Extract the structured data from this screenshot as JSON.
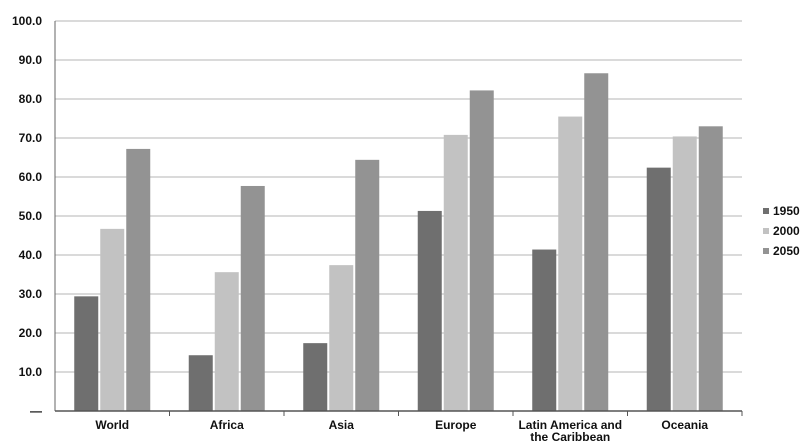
{
  "chart_data": {
    "type": "bar",
    "title": "",
    "xlabel": "",
    "ylabel": "",
    "ylim": [
      0,
      100
    ],
    "yticks": [
      "—",
      "10.0",
      "20.0",
      "30.0",
      "40.0",
      "50.0",
      "60.0",
      "70.0",
      "80.0",
      "90.0",
      "100.0"
    ],
    "categories": [
      [
        "World"
      ],
      [
        "Africa"
      ],
      [
        "Asia"
      ],
      [
        "Europe"
      ],
      [
        "Latin America and",
        "the Caribbean"
      ],
      [
        "Oceania"
      ]
    ],
    "series": [
      {
        "name": "1950",
        "color": "#6f6f6f",
        "values": [
          29.4,
          14.3,
          17.4,
          51.3,
          41.4,
          62.4
        ]
      },
      {
        "name": "2000",
        "color": "#c2c2c2",
        "values": [
          46.7,
          35.6,
          37.4,
          70.8,
          75.5,
          70.4
        ]
      },
      {
        "name": "2050",
        "color": "#939393",
        "values": [
          67.2,
          57.7,
          64.4,
          82.2,
          86.6,
          73.0
        ]
      }
    ],
    "grid": true,
    "legend_position": "right"
  }
}
